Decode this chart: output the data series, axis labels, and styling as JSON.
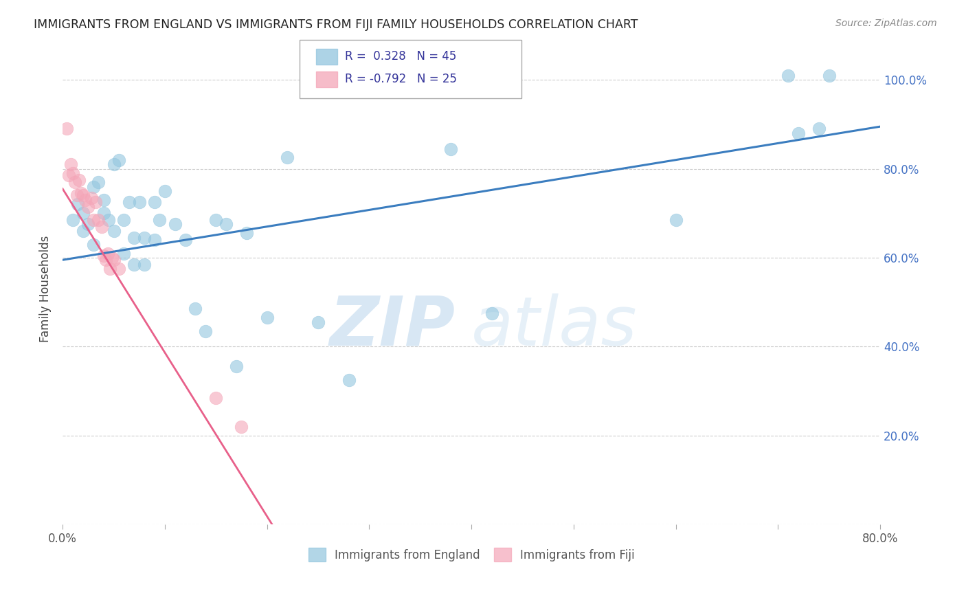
{
  "title": "IMMIGRANTS FROM ENGLAND VS IMMIGRANTS FROM FIJI FAMILY HOUSEHOLDS CORRELATION CHART",
  "source": "Source: ZipAtlas.com",
  "ylabel": "Family Households",
  "legend_label_blue": "Immigrants from England",
  "legend_label_pink": "Immigrants from Fiji",
  "R_blue": 0.328,
  "N_blue": 45,
  "R_pink": -0.792,
  "N_pink": 25,
  "xmin": 0.0,
  "xmax": 0.8,
  "ymin": 0.0,
  "ymax": 1.06,
  "ytick_vals": [
    0.0,
    0.2,
    0.4,
    0.6,
    0.8,
    1.0
  ],
  "xtick_vals": [
    0.0,
    0.1,
    0.2,
    0.3,
    0.4,
    0.5,
    0.6,
    0.7,
    0.8
  ],
  "blue_color": "#92c5de",
  "pink_color": "#f4a6b8",
  "blue_line_color": "#3b7dbf",
  "pink_line_color": "#e8608a",
  "watermark_zip": "ZIP",
  "watermark_atlas": "atlas",
  "blue_points_x": [
    0.01,
    0.015,
    0.02,
    0.02,
    0.025,
    0.03,
    0.03,
    0.035,
    0.04,
    0.04,
    0.045,
    0.05,
    0.05,
    0.055,
    0.06,
    0.06,
    0.065,
    0.07,
    0.07,
    0.075,
    0.08,
    0.08,
    0.09,
    0.09,
    0.095,
    0.1,
    0.11,
    0.12,
    0.13,
    0.14,
    0.15,
    0.16,
    0.17,
    0.18,
    0.2,
    0.22,
    0.25,
    0.28,
    0.38,
    0.42,
    0.6,
    0.71,
    0.75,
    0.72,
    0.74
  ],
  "blue_points_y": [
    0.685,
    0.72,
    0.66,
    0.7,
    0.675,
    0.76,
    0.63,
    0.77,
    0.7,
    0.73,
    0.685,
    0.81,
    0.66,
    0.82,
    0.685,
    0.61,
    0.725,
    0.645,
    0.585,
    0.725,
    0.645,
    0.585,
    0.725,
    0.64,
    0.685,
    0.75,
    0.675,
    0.64,
    0.485,
    0.435,
    0.685,
    0.675,
    0.355,
    0.655,
    0.465,
    0.825,
    0.455,
    0.325,
    0.845,
    0.475,
    0.685,
    1.01,
    1.01,
    0.88,
    0.89
  ],
  "pink_points_x": [
    0.004,
    0.006,
    0.008,
    0.01,
    0.012,
    0.014,
    0.016,
    0.018,
    0.02,
    0.022,
    0.025,
    0.028,
    0.03,
    0.032,
    0.035,
    0.038,
    0.04,
    0.042,
    0.044,
    0.046,
    0.048,
    0.05,
    0.055,
    0.15,
    0.175
  ],
  "pink_points_y": [
    0.89,
    0.785,
    0.81,
    0.79,
    0.77,
    0.74,
    0.775,
    0.745,
    0.74,
    0.73,
    0.715,
    0.735,
    0.685,
    0.725,
    0.685,
    0.67,
    0.605,
    0.595,
    0.61,
    0.575,
    0.6,
    0.595,
    0.575,
    0.285,
    0.22
  ],
  "blue_line_x": [
    0.0,
    0.8
  ],
  "blue_line_y": [
    0.595,
    0.895
  ],
  "pink_line_x": [
    0.0,
    0.205
  ],
  "pink_line_y": [
    0.755,
    0.0
  ]
}
